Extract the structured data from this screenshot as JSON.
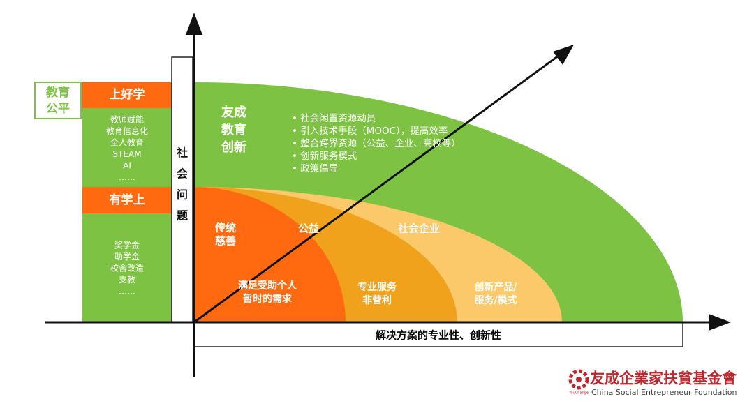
{
  "left_panel": {
    "label": [
      "教育",
      "公平"
    ],
    "sections": [
      {
        "title": "上好学",
        "items": [
          "教师赋能",
          "教育信息化",
          "全人教育",
          "STEAM",
          "AI",
          "……"
        ]
      },
      {
        "title": "有学上",
        "items": [
          "奖学金",
          "助学金",
          "校舍改造",
          "支教",
          "……"
        ]
      }
    ]
  },
  "y_axis_label": [
    "社",
    "会",
    "问",
    "题"
  ],
  "x_axis_label": "解决方案的专业性、创新性",
  "innovation": {
    "title": [
      "友成",
      "教育",
      "创新"
    ],
    "bullets": [
      "社会闲置资源动员",
      "引入技术手段（MOOC），提高效率",
      "整合跨界资源（公益、企业、高校等）",
      "创新服务模式",
      "政策倡导"
    ]
  },
  "zones": [
    {
      "name": [
        "传统",
        "慈善"
      ],
      "desc": [
        "满足受助个人",
        "暂时的需求"
      ]
    },
    {
      "name": [
        "公益"
      ],
      "desc": [
        "专业服务",
        "非营利"
      ]
    },
    {
      "name": [
        "社会企业"
      ],
      "desc": [
        "创新产品/",
        "服务/模式"
      ]
    }
  ],
  "logo": {
    "name": "友成企業家扶貧基金會",
    "english": "China Social Entrepreneur Foundation",
    "brand": "YouChange"
  }
}
